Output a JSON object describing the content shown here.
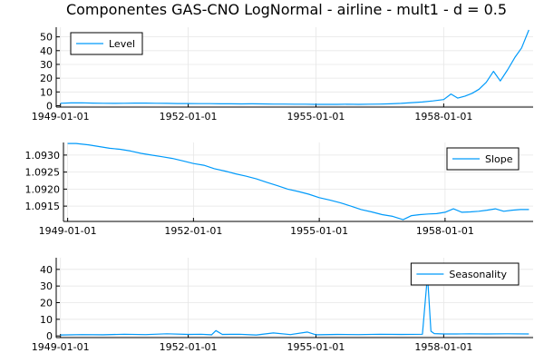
{
  "title": "Componentes GAS-CNO LogNormal - airline - mult1 - d = 0.5",
  "colors": {
    "series": "#009AFA",
    "grid": "#E6E6E6",
    "axis": "#000000"
  },
  "chart_data": [
    {
      "type": "line",
      "legend": "Level",
      "legend_position": "top-left",
      "grid": true,
      "x_ticks": [
        "1949-01-01",
        "1952-01-01",
        "1955-01-01",
        "1958-01-01"
      ],
      "x_tick_years": [
        1949,
        1952,
        1955,
        1958
      ],
      "xlim": [
        1948.9,
        1960.1
      ],
      "ylim": [
        -1,
        57
      ],
      "y_ticks": [
        0,
        10,
        20,
        30,
        40,
        50
      ],
      "y_tick_labels": [
        "0",
        "10",
        "20",
        "30",
        "40",
        "50"
      ],
      "series": [
        {
          "x": [
            1949.0,
            1949.25,
            1949.5,
            1949.75,
            1950.0,
            1950.25,
            1950.5,
            1950.75,
            1951.0,
            1951.25,
            1951.5,
            1951.75,
            1952.0,
            1952.25,
            1952.5,
            1952.75,
            1953.0,
            1953.25,
            1953.5,
            1953.75,
            1954.0,
            1954.25,
            1954.5,
            1954.75,
            1955.0,
            1955.25,
            1955.5,
            1955.75,
            1956.0,
            1956.25,
            1956.5,
            1956.75,
            1957.0,
            1957.25,
            1957.5,
            1957.75,
            1958.0,
            1958.17,
            1958.33,
            1958.5,
            1958.67,
            1958.83,
            1959.0,
            1959.17,
            1959.33,
            1959.5,
            1959.67,
            1959.83,
            1960.0
          ],
          "values": [
            1.8,
            2.0,
            2.1,
            1.9,
            1.8,
            1.7,
            1.8,
            1.9,
            1.9,
            1.8,
            1.7,
            1.6,
            1.6,
            1.5,
            1.5,
            1.4,
            1.4,
            1.3,
            1.4,
            1.3,
            1.2,
            1.2,
            1.1,
            1.1,
            1.0,
            1.0,
            1.0,
            1.1,
            1.0,
            1.1,
            1.2,
            1.4,
            1.7,
            2.2,
            2.7,
            3.5,
            4.5,
            8.5,
            5.5,
            7.0,
            9.0,
            12.0,
            17.0,
            25.0,
            18.0,
            26.0,
            35.0,
            42.0,
            55.0
          ]
        }
      ]
    },
    {
      "type": "line",
      "legend": "Slope",
      "legend_position": "top-right",
      "grid": true,
      "x_ticks": [
        "1949-01-01",
        "1952-01-01",
        "1955-01-01",
        "1958-01-01"
      ],
      "x_tick_years": [
        1949,
        1952,
        1955,
        1958
      ],
      "xlim": [
        1948.9,
        1960.1
      ],
      "ylim": [
        1.09105,
        1.09337
      ],
      "y_ticks": [
        1.0915,
        1.092,
        1.0925,
        1.093
      ],
      "y_tick_labels": [
        "1.0915",
        "1.0920",
        "1.0925",
        "1.0930"
      ],
      "series": [
        {
          "x": [
            1949.0,
            1949.2,
            1949.5,
            1949.75,
            1950.0,
            1950.25,
            1950.5,
            1950.75,
            1951.0,
            1951.25,
            1951.5,
            1951.75,
            1952.0,
            1952.25,
            1952.5,
            1952.75,
            1953.0,
            1953.25,
            1953.5,
            1953.75,
            1954.0,
            1954.25,
            1954.5,
            1954.75,
            1955.0,
            1955.25,
            1955.5,
            1955.75,
            1956.0,
            1956.25,
            1956.5,
            1956.75,
            1957.0,
            1957.2,
            1957.4,
            1957.6,
            1957.8,
            1958.0,
            1958.2,
            1958.4,
            1958.6,
            1958.8,
            1959.0,
            1959.2,
            1959.4,
            1959.6,
            1959.8,
            1960.0
          ],
          "values": [
            1.09334,
            1.09334,
            1.0933,
            1.09325,
            1.0932,
            1.09317,
            1.09312,
            1.09305,
            1.093,
            1.09295,
            1.0929,
            1.09283,
            1.09275,
            1.0927,
            1.0926,
            1.09253,
            1.09245,
            1.09238,
            1.0923,
            1.0922,
            1.0921,
            1.092,
            1.09193,
            1.09185,
            1.09175,
            1.09168,
            1.0916,
            1.0915,
            1.0914,
            1.09133,
            1.09125,
            1.0912,
            1.0911,
            1.09122,
            1.09125,
            1.09127,
            1.09128,
            1.09132,
            1.09142,
            1.09132,
            1.09133,
            1.09135,
            1.09138,
            1.09142,
            1.09135,
            1.09138,
            1.0914,
            1.0914
          ]
        }
      ]
    },
    {
      "type": "line",
      "legend": "Seasonality",
      "legend_position": "top-right",
      "grid": true,
      "x_ticks": [
        "1949-01-01",
        "1952-01-01",
        "1955-01-01",
        "1958-01-01"
      ],
      "x_tick_years": [
        1949,
        1952,
        1955,
        1958
      ],
      "xlim": [
        1948.9,
        1960.1
      ],
      "ylim": [
        -1,
        47
      ],
      "y_ticks": [
        0,
        10,
        20,
        30,
        40
      ],
      "y_tick_labels": [
        "0",
        "10",
        "20",
        "30",
        "40"
      ],
      "series": [
        {
          "x": [
            1949.0,
            1949.5,
            1950.0,
            1950.5,
            1951.0,
            1951.5,
            1952.0,
            1952.3,
            1952.55,
            1952.65,
            1952.8,
            1953.2,
            1953.6,
            1954.0,
            1954.4,
            1954.8,
            1955.0,
            1955.5,
            1956.0,
            1956.5,
            1957.0,
            1957.5,
            1957.62,
            1957.7,
            1957.78,
            1958.0,
            1958.3,
            1958.6,
            1959.0,
            1959.5,
            1960.0
          ],
          "values": [
            0.6,
            0.8,
            0.7,
            1.0,
            0.8,
            1.3,
            0.9,
            1.0,
            0.7,
            3.2,
            0.9,
            1.0,
            0.6,
            1.8,
            0.8,
            2.3,
            0.7,
            0.9,
            0.8,
            1.0,
            0.9,
            1.0,
            36.5,
            2.8,
            1.4,
            1.2,
            1.2,
            1.3,
            1.2,
            1.3,
            1.2
          ]
        }
      ]
    }
  ]
}
